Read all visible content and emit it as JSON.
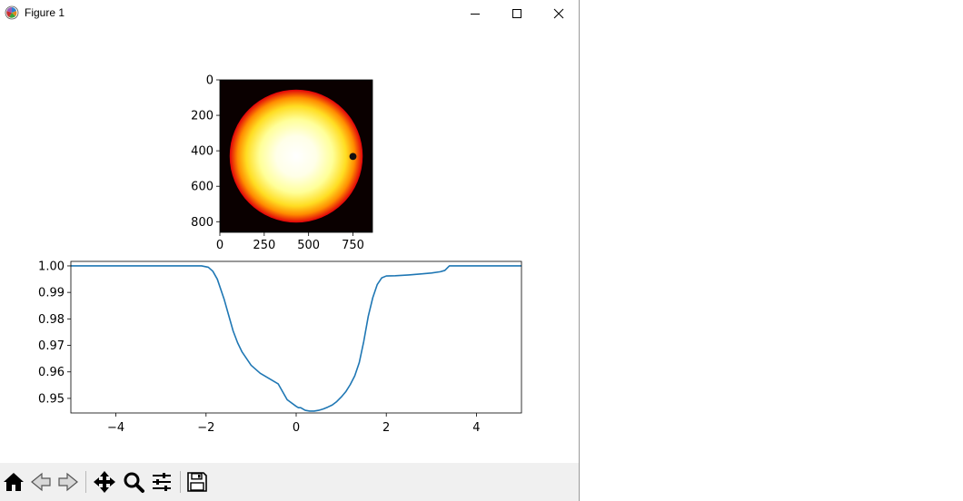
{
  "window": {
    "title": "Figure 1",
    "icons": {
      "app": "matplotlib-logo-icon",
      "minimize": "minimize-icon",
      "maximize": "maximize-icon",
      "close": "close-icon"
    }
  },
  "toolbar": {
    "buttons": [
      {
        "name": "home-button",
        "icon": "home-icon"
      },
      {
        "name": "back-button",
        "icon": "back-arrow-icon"
      },
      {
        "name": "forward-button",
        "icon": "forward-arrow-icon"
      },
      {
        "name": "pan-button",
        "icon": "move-icon"
      },
      {
        "name": "zoom-button",
        "icon": "magnifier-icon"
      },
      {
        "name": "configure-subplots-button",
        "icon": "sliders-icon"
      },
      {
        "name": "save-button",
        "icon": "floppy-disk-icon"
      }
    ]
  },
  "chart_data": [
    {
      "type": "heatmap",
      "description_of_content": "star intensity image with a transiting planet",
      "xticks": [
        "0",
        "250",
        "500",
        "750"
      ],
      "yticks": [
        "0",
        "200",
        "400",
        "600",
        "800"
      ],
      "xlim": [
        0,
        860
      ],
      "ylim": [
        860,
        0
      ],
      "star_center": [
        430,
        430
      ],
      "star_radius": 375,
      "planet_center": [
        750,
        432
      ],
      "planet_radius": 20,
      "colormap": "hot",
      "colors": {
        "background": "#0a0000",
        "center": "#ffffff",
        "edge": "#e0000a",
        "planet": "#111111"
      }
    },
    {
      "type": "line",
      "xlim": [
        -5,
        5
      ],
      "ylim": [
        0.9445,
        1.0017
      ],
      "xticks": [
        "−4",
        "−2",
        "0",
        "2",
        "4"
      ],
      "xtick_values": [
        -4,
        -2,
        0,
        2,
        4
      ],
      "yticks": [
        "0.95",
        "0.96",
        "0.97",
        "0.98",
        "0.99",
        "1.00"
      ],
      "ytick_values": [
        0.95,
        0.96,
        0.97,
        0.98,
        0.99,
        1.0
      ],
      "color": "#1f77b4",
      "series": [
        {
          "x": [
            -5,
            -2.1,
            -1.95,
            -1.85,
            -1.75,
            -1.6,
            -1.5,
            -1.4,
            -1.3,
            -1.2,
            -1.0,
            -0.8,
            -0.6,
            -0.4,
            -0.2,
            0.0,
            0.05,
            0.1,
            0.2,
            0.3,
            0.4,
            0.5,
            0.6,
            0.7,
            0.8,
            0.9,
            1.0,
            1.1,
            1.2,
            1.3,
            1.4,
            1.5,
            1.6,
            1.7,
            1.8,
            1.9,
            2.0,
            2.2,
            2.5,
            2.8,
            3.0,
            3.2,
            3.3,
            3.4,
            3.5,
            5
          ],
          "y": [
            1.0,
            1.0,
            0.9995,
            0.998,
            0.995,
            0.9875,
            0.9815,
            0.9755,
            0.971,
            0.9675,
            0.9625,
            0.9595,
            0.9575,
            0.9555,
            0.9495,
            0.947,
            0.9465,
            0.9465,
            0.9455,
            0.9452,
            0.9452,
            0.9455,
            0.946,
            0.9467,
            0.9475,
            0.9488,
            0.9505,
            0.9525,
            0.9552,
            0.9585,
            0.9635,
            0.9715,
            0.981,
            0.988,
            0.993,
            0.9955,
            0.9962,
            0.9963,
            0.9966,
            0.997,
            0.9973,
            0.9978,
            0.9983,
            1.0,
            1.0,
            1.0
          ]
        }
      ]
    }
  ]
}
